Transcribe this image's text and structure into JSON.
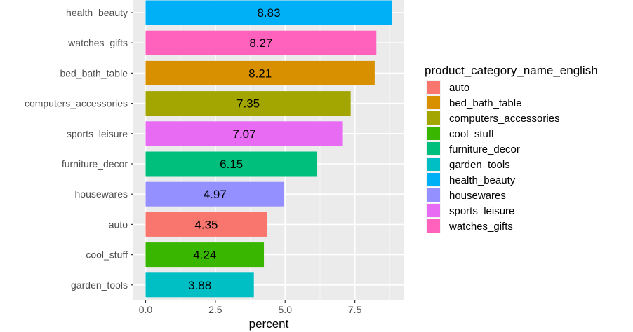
{
  "chart_data": {
    "type": "bar",
    "orientation": "horizontal",
    "categories": [
      "health_beauty",
      "watches_gifts",
      "bed_bath_table",
      "computers_accessories",
      "sports_leisure",
      "furniture_decor",
      "housewares",
      "auto",
      "cool_stuff",
      "garden_tools"
    ],
    "values": [
      8.83,
      8.27,
      8.21,
      7.35,
      7.07,
      6.15,
      4.97,
      4.35,
      4.24,
      3.88
    ],
    "value_labels": [
      "8.83",
      "8.27",
      "8.21",
      "7.35",
      "7.07",
      "6.15",
      "4.97",
      "4.35",
      "4.24",
      "3.88"
    ],
    "colors": {
      "health_beauty": "#00B0F6",
      "watches_gifts": "#FF62BC",
      "bed_bath_table": "#D89000",
      "computers_accessories": "#A3A500",
      "sports_leisure": "#E76BF3",
      "furniture_decor": "#00BF7D",
      "housewares": "#9590FF",
      "auto": "#F8766D",
      "cool_stuff": "#39B600",
      "garden_tools": "#00BFC4"
    },
    "xlabel": "percent",
    "ylabel": "",
    "xlim": [
      -0.44,
      9.27
    ],
    "xticks": [
      0,
      2.5,
      5,
      7.5
    ],
    "xtick_labels": [
      "0.0",
      "2.5",
      "5.0",
      "7.5"
    ],
    "grid": true,
    "legend": {
      "title": "product_category_name_english",
      "placement": "right",
      "entries": [
        "auto",
        "bed_bath_table",
        "computers_accessories",
        "cool_stuff",
        "furniture_decor",
        "garden_tools",
        "health_beauty",
        "housewares",
        "sports_leisure",
        "watches_gifts"
      ]
    }
  }
}
